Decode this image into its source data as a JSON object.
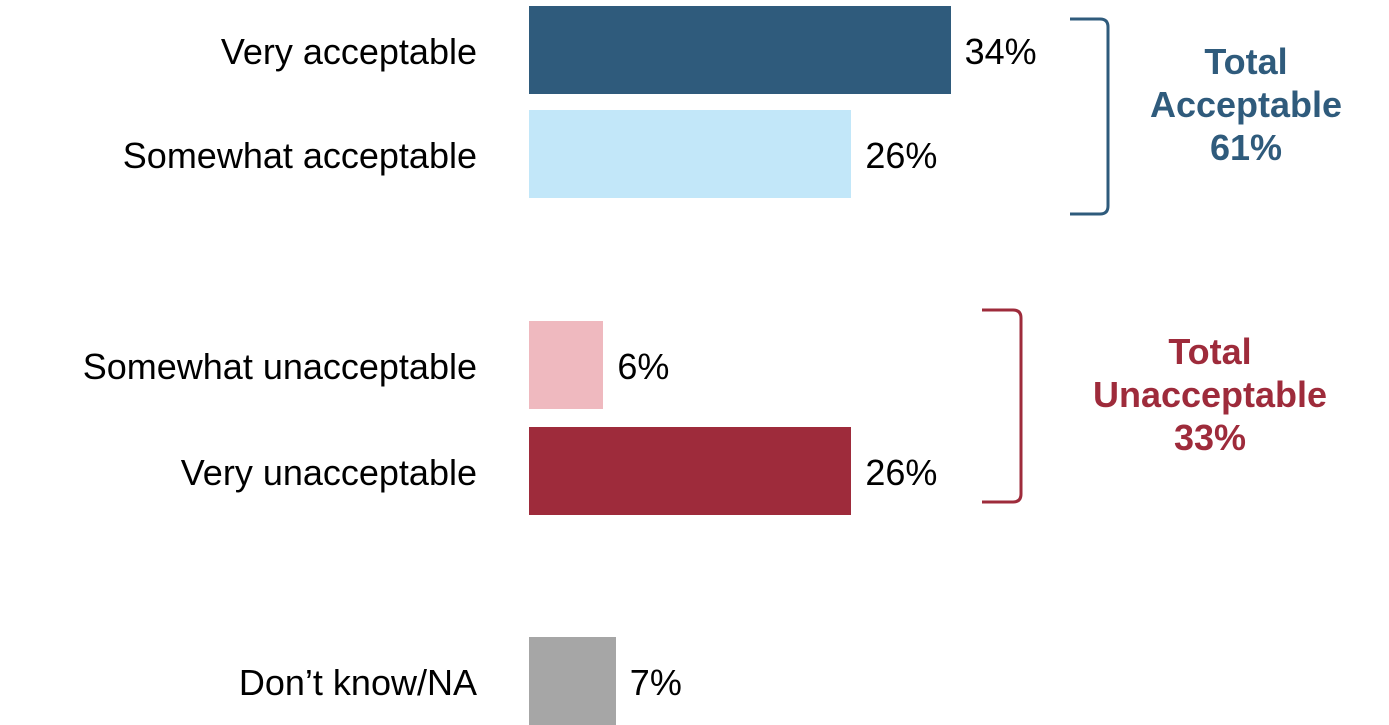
{
  "chart_data": {
    "type": "bar",
    "orientation": "horizontal",
    "categories": [
      "Very acceptable",
      "Somewhat acceptable",
      "Somewhat unacceptable",
      "Very unacceptable",
      "Don’t know/NA"
    ],
    "values": [
      34,
      26,
      6,
      26,
      7
    ],
    "value_labels": [
      "34%",
      "26%",
      "6%",
      "26%",
      "7%"
    ],
    "colors": [
      "#2f5b7c",
      "#c2e7f9",
      "#efb9bf",
      "#9e2b3b",
      "#a6a6a6"
    ],
    "title": "",
    "xlabel": "",
    "ylabel": "",
    "grid": false,
    "groups": [
      {
        "lines": [
          "Total",
          "Acceptable",
          "61%"
        ],
        "value": 61,
        "color": "#2f5b7c",
        "members": [
          0,
          1
        ]
      },
      {
        "lines": [
          "Total",
          "Unacceptable",
          "33%"
        ],
        "value": 33,
        "color": "#9e2b3b",
        "members": [
          2,
          3
        ]
      }
    ]
  }
}
